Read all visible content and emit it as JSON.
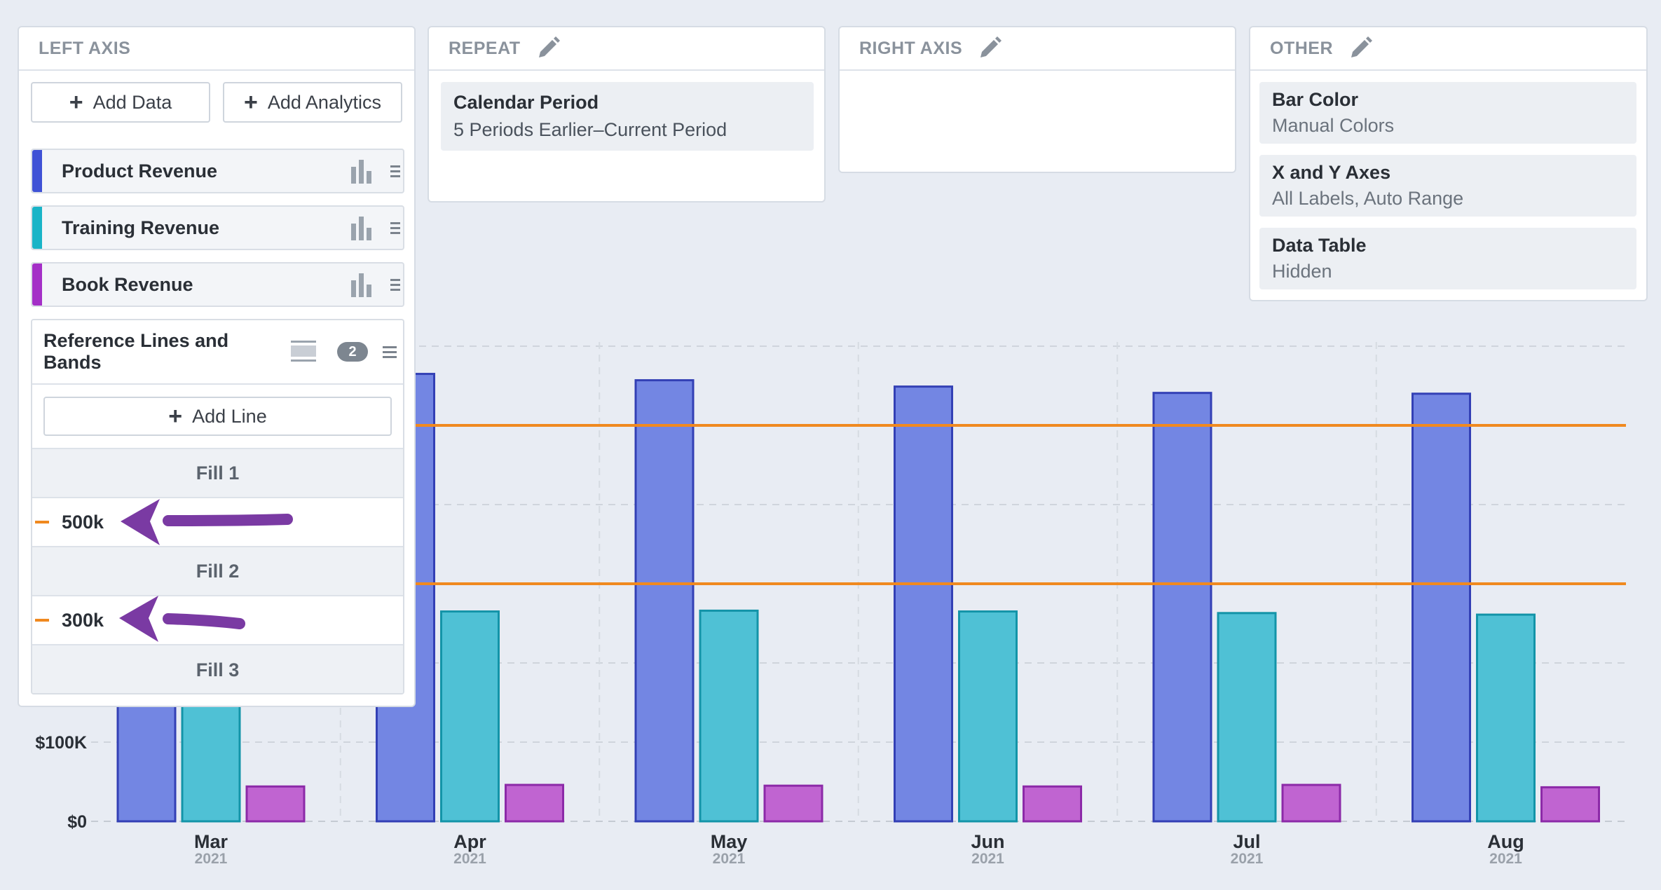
{
  "left_panel": {
    "title": "LEFT AXIS",
    "add_data_label": "Add Data",
    "add_analytics_label": "Add Analytics",
    "series": [
      {
        "name": "Product Revenue",
        "color": "#3f52d6"
      },
      {
        "name": "Training Revenue",
        "color": "#19b4c7"
      },
      {
        "name": "Book Revenue",
        "color": "#a42fc7"
      }
    ],
    "reference": {
      "title": "Reference Lines and Bands",
      "count": "2",
      "add_line_label": "Add Line",
      "fill_1": "Fill 1",
      "line_1": "500k",
      "fill_2": "Fill 2",
      "line_2": "300k",
      "fill_3": "Fill 3",
      "line_color": "#f0891f"
    }
  },
  "repeat_panel": {
    "title": "REPEAT",
    "item_title": "Calendar Period",
    "item_value": "5 Periods Earlier–Current Period"
  },
  "right_panel": {
    "title": "RIGHT AXIS"
  },
  "other_panel": {
    "title": "OTHER",
    "items": [
      {
        "title": "Bar Color",
        "value": "Manual Colors"
      },
      {
        "title": "X and Y Axes",
        "value": "All Labels, Auto Range"
      },
      {
        "title": "Data Table",
        "value": "Hidden"
      }
    ]
  },
  "chart_data": {
    "type": "bar",
    "categories": [
      "Mar",
      "Apr",
      "May",
      "Jun",
      "Jul",
      "Aug"
    ],
    "category_year": "2021",
    "series": [
      {
        "name": "Product Revenue",
        "color": "#7386e3",
        "stroke": "#3340b5",
        "values": [
          570000,
          565000,
          557000,
          549000,
          541000,
          540000
        ]
      },
      {
        "name": "Training Revenue",
        "color": "#4fc1d5",
        "stroke": "#1394a8",
        "values": [
          264000,
          265000,
          266000,
          265000,
          263000,
          261000
        ]
      },
      {
        "name": "Book Revenue",
        "color": "#c064d1",
        "stroke": "#8c2aa8",
        "values": [
          44000,
          46000,
          45000,
          44000,
          46000,
          43000
        ]
      }
    ],
    "ylim": [
      0,
      600000
    ],
    "ytick_values": [
      0,
      100000
    ],
    "ytick_labels": [
      "$0",
      "$100K"
    ],
    "reference_lines": [
      500000,
      300000
    ],
    "grid": true
  }
}
